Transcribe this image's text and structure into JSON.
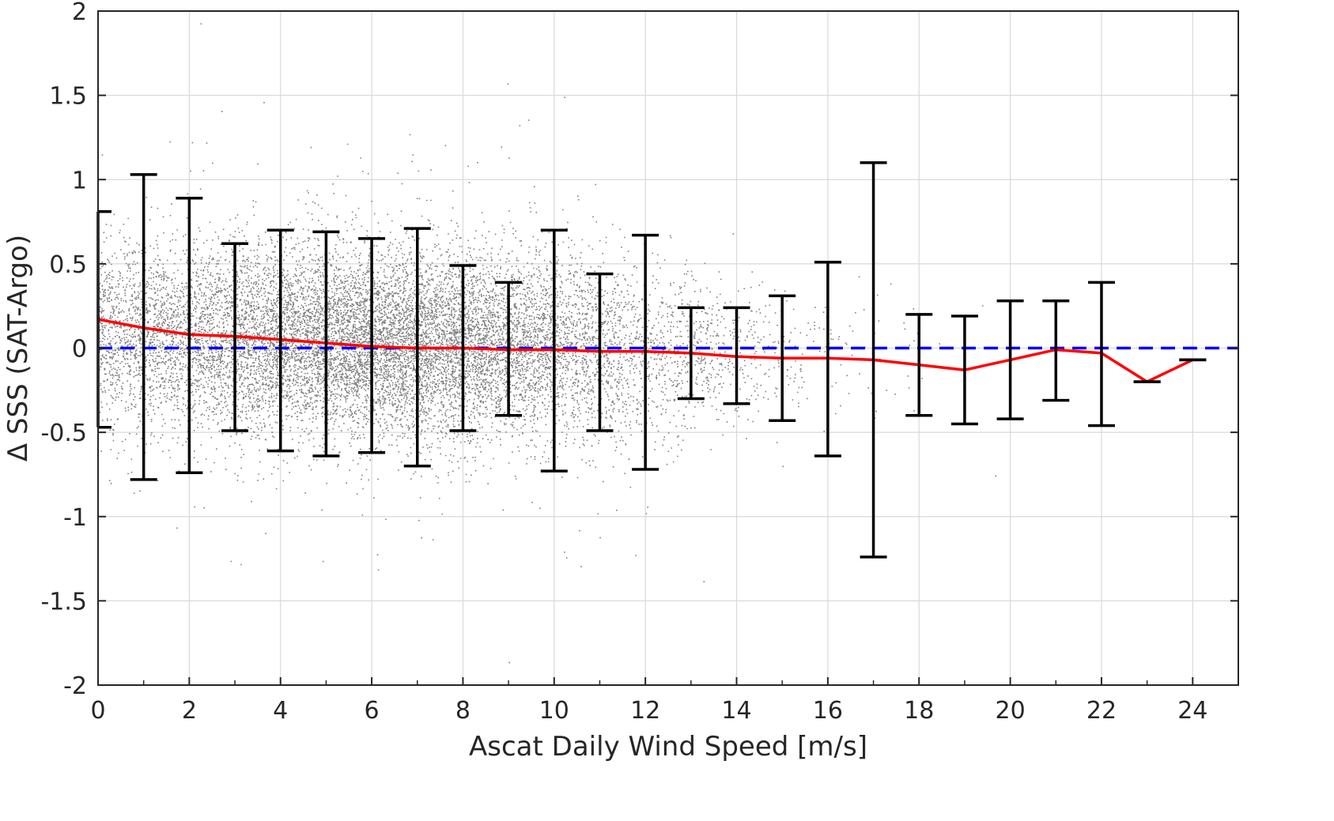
{
  "chart_data": {
    "type": "scatter",
    "xlabel": "Ascat Daily Wind Speed [m/s]",
    "ylabel": "Δ SSS (SAT-Argo)",
    "xlim": [
      0,
      25
    ],
    "ylim": [
      -2,
      2
    ],
    "xticks": [
      0,
      2,
      4,
      6,
      8,
      10,
      12,
      14,
      16,
      18,
      20,
      22,
      24
    ],
    "yticks": [
      2,
      1.5,
      1,
      0.5,
      0,
      -0.5,
      -1,
      -1.5,
      -2
    ],
    "grid": true,
    "legend": "none",
    "colors": {
      "scatter": "#808080",
      "mean_line": "#ff0000",
      "zero_line": "#0000ff",
      "error_bars": "#000000",
      "grid": "#d9d9d9",
      "axes": "#262626"
    },
    "series": [
      {
        "type": "mean_line",
        "x": [
          0,
          1,
          2,
          3,
          4,
          5,
          6,
          7,
          8,
          9,
          10,
          11,
          12,
          13,
          14,
          15,
          16,
          17,
          18,
          19,
          20,
          21,
          22,
          23,
          24
        ],
        "y": [
          0.17,
          0.12,
          0.08,
          0.07,
          0.05,
          0.03,
          0.01,
          0.0,
          0.0,
          -0.01,
          -0.01,
          -0.02,
          -0.02,
          -0.03,
          -0.05,
          -0.06,
          -0.06,
          -0.07,
          -0.1,
          -0.13,
          -0.07,
          -0.01,
          -0.03,
          -0.2,
          -0.07
        ]
      },
      {
        "type": "error_bars",
        "x": [
          0,
          1,
          2,
          3,
          4,
          5,
          6,
          7,
          8,
          9,
          10,
          11,
          12,
          13,
          14,
          15,
          16,
          17,
          18,
          19,
          20,
          21,
          22,
          23,
          24
        ],
        "upper": [
          0.81,
          1.03,
          0.89,
          0.62,
          0.7,
          0.69,
          0.65,
          0.71,
          0.49,
          0.39,
          0.7,
          0.44,
          0.67,
          0.24,
          0.24,
          0.31,
          0.51,
          1.1,
          0.2,
          0.19,
          0.28,
          0.28,
          0.39,
          -0.2,
          -0.07
        ],
        "lower": [
          -0.47,
          -0.78,
          -0.74,
          -0.49,
          -0.61,
          -0.64,
          -0.62,
          -0.7,
          -0.49,
          -0.4,
          -0.73,
          -0.49,
          -0.72,
          -0.3,
          -0.33,
          -0.43,
          -0.64,
          -1.24,
          -0.4,
          -0.45,
          -0.42,
          -0.31,
          -0.46,
          -0.2,
          -0.07
        ]
      },
      {
        "type": "reference_line",
        "y": 0
      },
      {
        "type": "scatter_cloud",
        "center_y": 0.0,
        "x_range": [
          0,
          24
        ],
        "y_range": [
          -2,
          2
        ],
        "density_peak_x": 5
      }
    ]
  }
}
